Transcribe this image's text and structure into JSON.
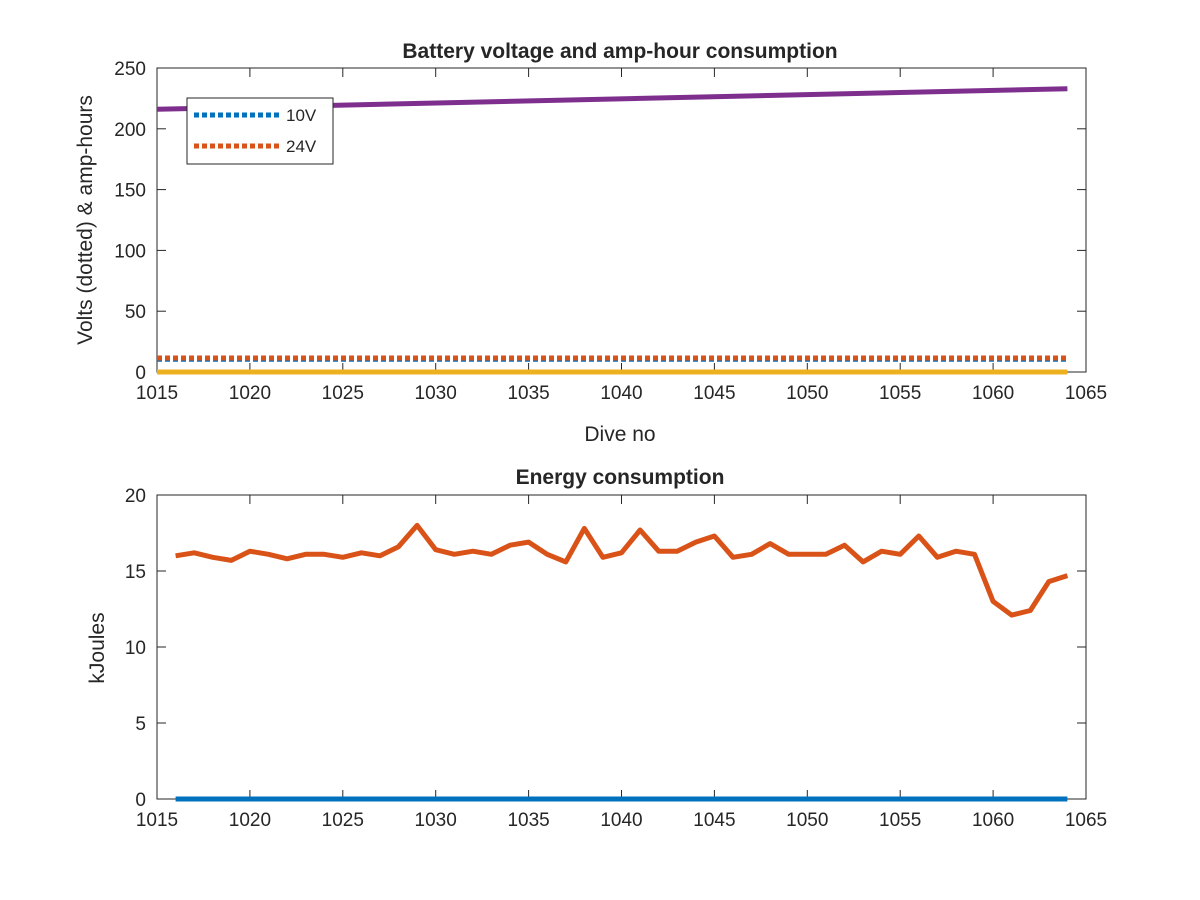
{
  "colors": {
    "blue": "#0072BD",
    "orange": "#D95319",
    "yellow": "#EDB120",
    "purple": "#7E2F8E",
    "axis": "#262626"
  },
  "chart_data": [
    {
      "type": "line",
      "title": "Battery voltage and amp-hour consumption",
      "xlabel": "Dive no",
      "ylabel": "Volts (dotted) & amp-hours",
      "xlim": [
        1015,
        1065
      ],
      "ylim": [
        0,
        250
      ],
      "xticks": [
        1015,
        1020,
        1025,
        1030,
        1035,
        1040,
        1045,
        1050,
        1055,
        1060,
        1065
      ],
      "yticks": [
        0,
        50,
        100,
        150,
        200,
        250
      ],
      "grid": false,
      "legend_position": "top-left",
      "legend": [
        "10V",
        "24V"
      ],
      "series": [
        {
          "name": "10V",
          "style": "dotted",
          "color": "blue",
          "x": [
            1015,
            1064
          ],
          "y": [
            10.5,
            10.5
          ]
        },
        {
          "name": "24V",
          "style": "dotted",
          "color": "orange",
          "x": [
            1015,
            1064
          ],
          "y": [
            11.5,
            11.5
          ]
        },
        {
          "style": "solid",
          "color": "yellow",
          "x": [
            1015,
            1064
          ],
          "y": [
            0,
            0
          ]
        },
        {
          "style": "solid",
          "color": "purple",
          "x": [
            1015,
            1064
          ],
          "y": [
            216,
            233
          ]
        }
      ]
    },
    {
      "type": "line",
      "title": "Energy consumption",
      "xlabel": "",
      "ylabel": "kJoules",
      "xlim": [
        1015,
        1065
      ],
      "ylim": [
        0,
        20
      ],
      "xticks": [
        1015,
        1020,
        1025,
        1030,
        1035,
        1040,
        1045,
        1050,
        1055,
        1060,
        1065
      ],
      "yticks": [
        0,
        5,
        10,
        15,
        20
      ],
      "grid": false,
      "series": [
        {
          "style": "solid",
          "color": "blue",
          "x": [
            1016,
            1064
          ],
          "y": [
            0,
            0
          ]
        },
        {
          "style": "solid",
          "color": "orange",
          "x": [
            1016,
            1017,
            1018,
            1019,
            1020,
            1021,
            1022,
            1023,
            1024,
            1025,
            1026,
            1027,
            1028,
            1029,
            1030,
            1031,
            1032,
            1033,
            1034,
            1035,
            1036,
            1037,
            1038,
            1039,
            1040,
            1041,
            1042,
            1043,
            1044,
            1045,
            1046,
            1047,
            1048,
            1049,
            1050,
            1051,
            1052,
            1053,
            1054,
            1055,
            1056,
            1057,
            1058,
            1059,
            1060,
            1061,
            1062,
            1063,
            1064
          ],
          "y": [
            16.0,
            16.2,
            15.9,
            15.7,
            16.3,
            16.1,
            15.8,
            16.1,
            16.1,
            15.9,
            16.2,
            16.0,
            16.6,
            18.0,
            16.4,
            16.1,
            16.3,
            16.1,
            16.7,
            16.9,
            16.1,
            15.6,
            17.8,
            15.9,
            16.2,
            17.7,
            16.3,
            16.3,
            16.9,
            17.3,
            15.9,
            16.1,
            16.8,
            16.1,
            16.1,
            16.1,
            16.7,
            15.6,
            16.3,
            16.1,
            17.3,
            15.9,
            16.3,
            16.1,
            13.0,
            12.1,
            12.4,
            14.3,
            14.7
          ]
        }
      ]
    }
  ]
}
